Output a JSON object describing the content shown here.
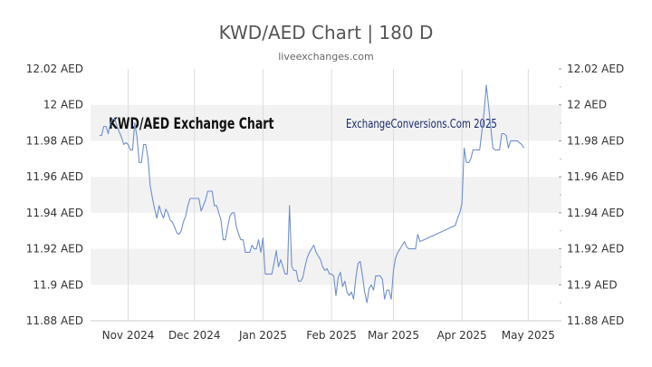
{
  "header": {
    "title": "KWD/AED Chart | 180 D",
    "source": "liveexchanges.com"
  },
  "watermarks": {
    "left": "KWD/AED Exchange Chart",
    "right": "ExchangeConversions.Com 2025"
  },
  "colors": {
    "line": "#6f8fcc",
    "band": "#f2f2f2",
    "axis_text": "#333333",
    "grid": "#dddddd",
    "watermark_left": "#111111",
    "watermark_right": "#1a2a6c"
  },
  "chart_data": {
    "type": "line",
    "title": "KWD/AED Chart | 180 D",
    "xlabel": "",
    "ylabel": "",
    "ylim": [
      11.88,
      12.02
    ],
    "yticks": [
      11.88,
      11.9,
      11.92,
      11.94,
      11.96,
      11.98,
      12.0,
      12.02
    ],
    "ytick_labels": [
      "11.88 AED",
      "11.9 AED",
      "11.92 AED",
      "11.94 AED",
      "11.96 AED",
      "11.98 AED",
      "12 AED",
      "12.02 AED"
    ],
    "xlim": [
      "2024-10-15",
      "2025-05-16"
    ],
    "xticks": [
      {
        "date": "2024-11-01",
        "label": "Nov 2024"
      },
      {
        "date": "2024-12-01",
        "label": "Dec 2024"
      },
      {
        "date": "2025-01-01",
        "label": "Jan 2025"
      },
      {
        "date": "2025-02-01",
        "label": "Feb 2025"
      },
      {
        "date": "2025-03-01",
        "label": "Mar 2025"
      },
      {
        "date": "2025-04-01",
        "label": "Apr 2025"
      },
      {
        "date": "2025-05-01",
        "label": "May 2025"
      }
    ],
    "grid": true,
    "alternating_bands": true,
    "series": [
      {
        "name": "",
        "points": [
          [
            "2024-10-19",
            11.983
          ],
          [
            "2024-10-20",
            11.983
          ],
          [
            "2024-10-21",
            11.988
          ],
          [
            "2024-10-22",
            11.988
          ],
          [
            "2024-10-23",
            11.984
          ],
          [
            "2024-10-24",
            11.99
          ],
          [
            "2024-10-25",
            11.992
          ],
          [
            "2024-10-26",
            11.992
          ],
          [
            "2024-10-27",
            11.988
          ],
          [
            "2024-10-28",
            11.985
          ],
          [
            "2024-10-29",
            11.982
          ],
          [
            "2024-10-30",
            11.978
          ],
          [
            "2024-10-31",
            11.979
          ],
          [
            "2024-11-01",
            11.978
          ],
          [
            "2024-11-02",
            11.975
          ],
          [
            "2024-11-03",
            11.975
          ],
          [
            "2024-11-04",
            11.99
          ],
          [
            "2024-11-05",
            11.982
          ],
          [
            "2024-11-06",
            11.968
          ],
          [
            "2024-11-07",
            11.968
          ],
          [
            "2024-11-08",
            11.978
          ],
          [
            "2024-11-09",
            11.978
          ],
          [
            "2024-11-10",
            11.97
          ],
          [
            "2024-11-11",
            11.955
          ],
          [
            "2024-11-12",
            11.948
          ],
          [
            "2024-11-13",
            11.942
          ],
          [
            "2024-11-14",
            11.937
          ],
          [
            "2024-11-15",
            11.944
          ],
          [
            "2024-11-16",
            11.94
          ],
          [
            "2024-11-17",
            11.937
          ],
          [
            "2024-11-18",
            11.942
          ],
          [
            "2024-11-19",
            11.94
          ],
          [
            "2024-11-20",
            11.936
          ],
          [
            "2024-11-21",
            11.935
          ],
          [
            "2024-11-22",
            11.932
          ],
          [
            "2024-11-23",
            11.929
          ],
          [
            "2024-11-24",
            11.928
          ],
          [
            "2024-11-25",
            11.93
          ],
          [
            "2024-11-26",
            11.935
          ],
          [
            "2024-11-27",
            11.938
          ],
          [
            "2024-11-28",
            11.944
          ],
          [
            "2024-11-29",
            11.948
          ],
          [
            "2024-11-30",
            11.948
          ],
          [
            "2024-12-01",
            11.948
          ],
          [
            "2024-12-02",
            11.948
          ],
          [
            "2024-12-03",
            11.948
          ],
          [
            "2024-12-04",
            11.941
          ],
          [
            "2024-12-05",
            11.944
          ],
          [
            "2024-12-06",
            11.947
          ],
          [
            "2024-12-07",
            11.952
          ],
          [
            "2024-12-08",
            11.952
          ],
          [
            "2024-12-09",
            11.952
          ],
          [
            "2024-12-10",
            11.944
          ],
          [
            "2024-12-11",
            11.944
          ],
          [
            "2024-12-12",
            11.94
          ],
          [
            "2024-12-13",
            11.936
          ],
          [
            "2024-12-14",
            11.925
          ],
          [
            "2024-12-15",
            11.925
          ],
          [
            "2024-12-16",
            11.932
          ],
          [
            "2024-12-17",
            11.938
          ],
          [
            "2024-12-18",
            11.94
          ],
          [
            "2024-12-19",
            11.94
          ],
          [
            "2024-12-20",
            11.932
          ],
          [
            "2024-12-21",
            11.928
          ],
          [
            "2024-12-22",
            11.925
          ],
          [
            "2024-12-23",
            11.925
          ],
          [
            "2024-12-24",
            11.918
          ],
          [
            "2024-12-25",
            11.918
          ],
          [
            "2024-12-26",
            11.918
          ],
          [
            "2024-12-27",
            11.922
          ],
          [
            "2024-12-28",
            11.92
          ],
          [
            "2024-12-29",
            11.92
          ],
          [
            "2024-12-30",
            11.925
          ],
          [
            "2024-12-31",
            11.918
          ],
          [
            "2025-01-01",
            11.926
          ],
          [
            "2025-01-02",
            11.906
          ],
          [
            "2025-01-03",
            11.906
          ],
          [
            "2025-01-04",
            11.906
          ],
          [
            "2025-01-05",
            11.906
          ],
          [
            "2025-01-06",
            11.912
          ],
          [
            "2025-01-07",
            11.919
          ],
          [
            "2025-01-08",
            11.91
          ],
          [
            "2025-01-09",
            11.914
          ],
          [
            "2025-01-10",
            11.91
          ],
          [
            "2025-01-11",
            11.906
          ],
          [
            "2025-01-12",
            11.906
          ],
          [
            "2025-01-13",
            11.944
          ],
          [
            "2025-01-14",
            11.91
          ],
          [
            "2025-01-15",
            11.908
          ],
          [
            "2025-01-16",
            11.908
          ],
          [
            "2025-01-17",
            11.902
          ],
          [
            "2025-01-18",
            11.902
          ],
          [
            "2025-01-19",
            11.904
          ],
          [
            "2025-01-20",
            11.91
          ],
          [
            "2025-01-21",
            11.915
          ],
          [
            "2025-01-22",
            11.918
          ],
          [
            "2025-01-23",
            11.92
          ],
          [
            "2025-01-24",
            11.922
          ],
          [
            "2025-01-25",
            11.918
          ],
          [
            "2025-01-26",
            11.916
          ],
          [
            "2025-01-27",
            11.914
          ],
          [
            "2025-01-28",
            11.91
          ],
          [
            "2025-01-29",
            11.908
          ],
          [
            "2025-01-30",
            11.909
          ],
          [
            "2025-01-31",
            11.906
          ],
          [
            "2025-02-01",
            11.906
          ],
          [
            "2025-02-02",
            11.905
          ],
          [
            "2025-02-03",
            11.894
          ],
          [
            "2025-02-04",
            11.904
          ],
          [
            "2025-02-05",
            11.907
          ],
          [
            "2025-02-06",
            11.899
          ],
          [
            "2025-02-07",
            11.902
          ],
          [
            "2025-02-08",
            11.896
          ],
          [
            "2025-02-09",
            11.894
          ],
          [
            "2025-02-10",
            11.896
          ],
          [
            "2025-02-11",
            11.892
          ],
          [
            "2025-02-12",
            11.904
          ],
          [
            "2025-02-13",
            11.912
          ],
          [
            "2025-02-14",
            11.913
          ],
          [
            "2025-02-15",
            11.905
          ],
          [
            "2025-02-16",
            11.896
          ],
          [
            "2025-02-17",
            11.89
          ],
          [
            "2025-02-18",
            11.898
          ],
          [
            "2025-02-19",
            11.9
          ],
          [
            "2025-02-20",
            11.897
          ],
          [
            "2025-02-21",
            11.905
          ],
          [
            "2025-02-22",
            11.905
          ],
          [
            "2025-02-23",
            11.905
          ],
          [
            "2025-02-24",
            11.903
          ],
          [
            "2025-02-25",
            11.892
          ],
          [
            "2025-02-26",
            11.897
          ],
          [
            "2025-02-27",
            11.897
          ],
          [
            "2025-02-28",
            11.892
          ],
          [
            "2025-03-01",
            11.908
          ],
          [
            "2025-03-02",
            11.915
          ],
          [
            "2025-03-03",
            11.918
          ],
          [
            "2025-03-04",
            11.92
          ],
          [
            "2025-03-05",
            11.922
          ],
          [
            "2025-03-06",
            11.924
          ],
          [
            "2025-03-07",
            11.921
          ],
          [
            "2025-03-08",
            11.92
          ],
          [
            "2025-03-09",
            11.92
          ],
          [
            "2025-03-10",
            11.92
          ],
          [
            "2025-03-11",
            11.92
          ],
          [
            "2025-03-12",
            11.928
          ],
          [
            "2025-03-13",
            11.924
          ],
          [
            "2025-03-29",
            11.933
          ],
          [
            "2025-03-30",
            11.937
          ],
          [
            "2025-03-31",
            11.94
          ],
          [
            "2025-04-01",
            11.945
          ],
          [
            "2025-04-02",
            11.976
          ],
          [
            "2025-04-03",
            11.968
          ],
          [
            "2025-04-04",
            11.968
          ],
          [
            "2025-04-05",
            11.97
          ],
          [
            "2025-04-06",
            11.975
          ],
          [
            "2025-04-07",
            11.975
          ],
          [
            "2025-04-08",
            11.975
          ],
          [
            "2025-04-09",
            11.975
          ],
          [
            "2025-04-10",
            11.985
          ],
          [
            "2025-04-11",
            11.996
          ],
          [
            "2025-04-12",
            12.011
          ],
          [
            "2025-04-13",
            12.0
          ],
          [
            "2025-04-14",
            11.988
          ],
          [
            "2025-04-15",
            11.976
          ],
          [
            "2025-04-16",
            11.975
          ],
          [
            "2025-04-17",
            11.975
          ],
          [
            "2025-04-18",
            11.975
          ],
          [
            "2025-04-19",
            11.984
          ],
          [
            "2025-04-20",
            11.984
          ],
          [
            "2025-04-21",
            11.983
          ],
          [
            "2025-04-22",
            11.976
          ],
          [
            "2025-04-23",
            11.98
          ],
          [
            "2025-04-24",
            11.98
          ],
          [
            "2025-04-25",
            11.98
          ],
          [
            "2025-04-26",
            11.98
          ],
          [
            "2025-04-27",
            11.979
          ],
          [
            "2025-04-28",
            11.978
          ],
          [
            "2025-04-29",
            11.976
          ]
        ]
      }
    ]
  }
}
